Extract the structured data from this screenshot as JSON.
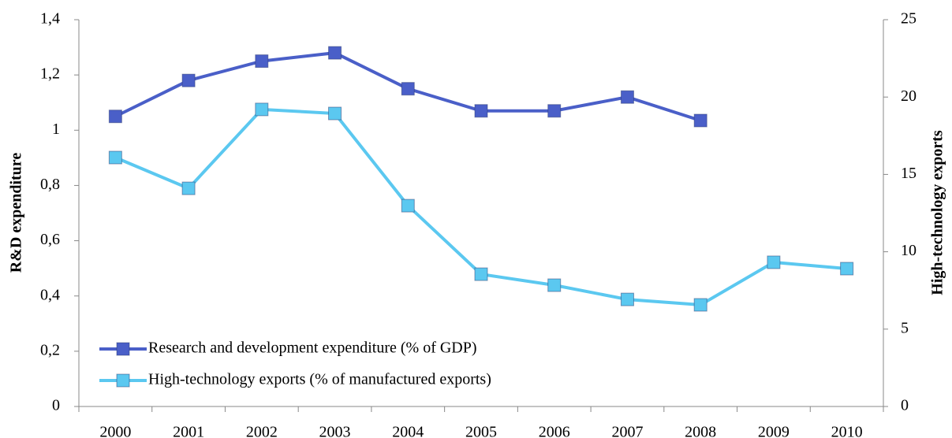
{
  "chart_data": {
    "type": "line",
    "categories": [
      "2000",
      "2001",
      "2002",
      "2003",
      "2004",
      "2005",
      "2006",
      "2007",
      "2008",
      "2009",
      "2010"
    ],
    "series": [
      {
        "name": "Research and development expenditure (% of GDP)",
        "color": "#4a5fc8",
        "values": [
          1.05,
          1.18,
          1.25,
          1.28,
          1.15,
          1.07,
          1.07,
          1.12,
          1.035,
          null,
          null
        ]
      },
      {
        "name": "High-technology exports (% of manufactured exports)",
        "color": "#5bc8f0",
        "axis": "y2",
        "values": [
          16.09,
          14.1,
          19.2,
          18.94,
          12.98,
          8.55,
          7.84,
          6.92,
          6.57,
          9.32,
          8.91
        ]
      }
    ],
    "ylabel": "R&D expenditure",
    "y2label": "High-technology exports",
    "ylim": [
      0,
      1.4
    ],
    "yticks": [
      0,
      {
        "value": 0.2,
        "label": "0,2"
      },
      {
        "value": 0.4,
        "label": "0,4"
      },
      {
        "value": 0.6,
        "label": "0,6"
      },
      {
        "value": 0.8,
        "label": "0,8"
      },
      1,
      {
        "value": 1.2,
        "label": "1,2"
      },
      {
        "value": 1.4,
        "label": "1,4"
      }
    ],
    "y2lim": [
      0,
      25
    ],
    "y2ticks": [
      0,
      5,
      10,
      15,
      20,
      25
    ],
    "grid": false
  }
}
